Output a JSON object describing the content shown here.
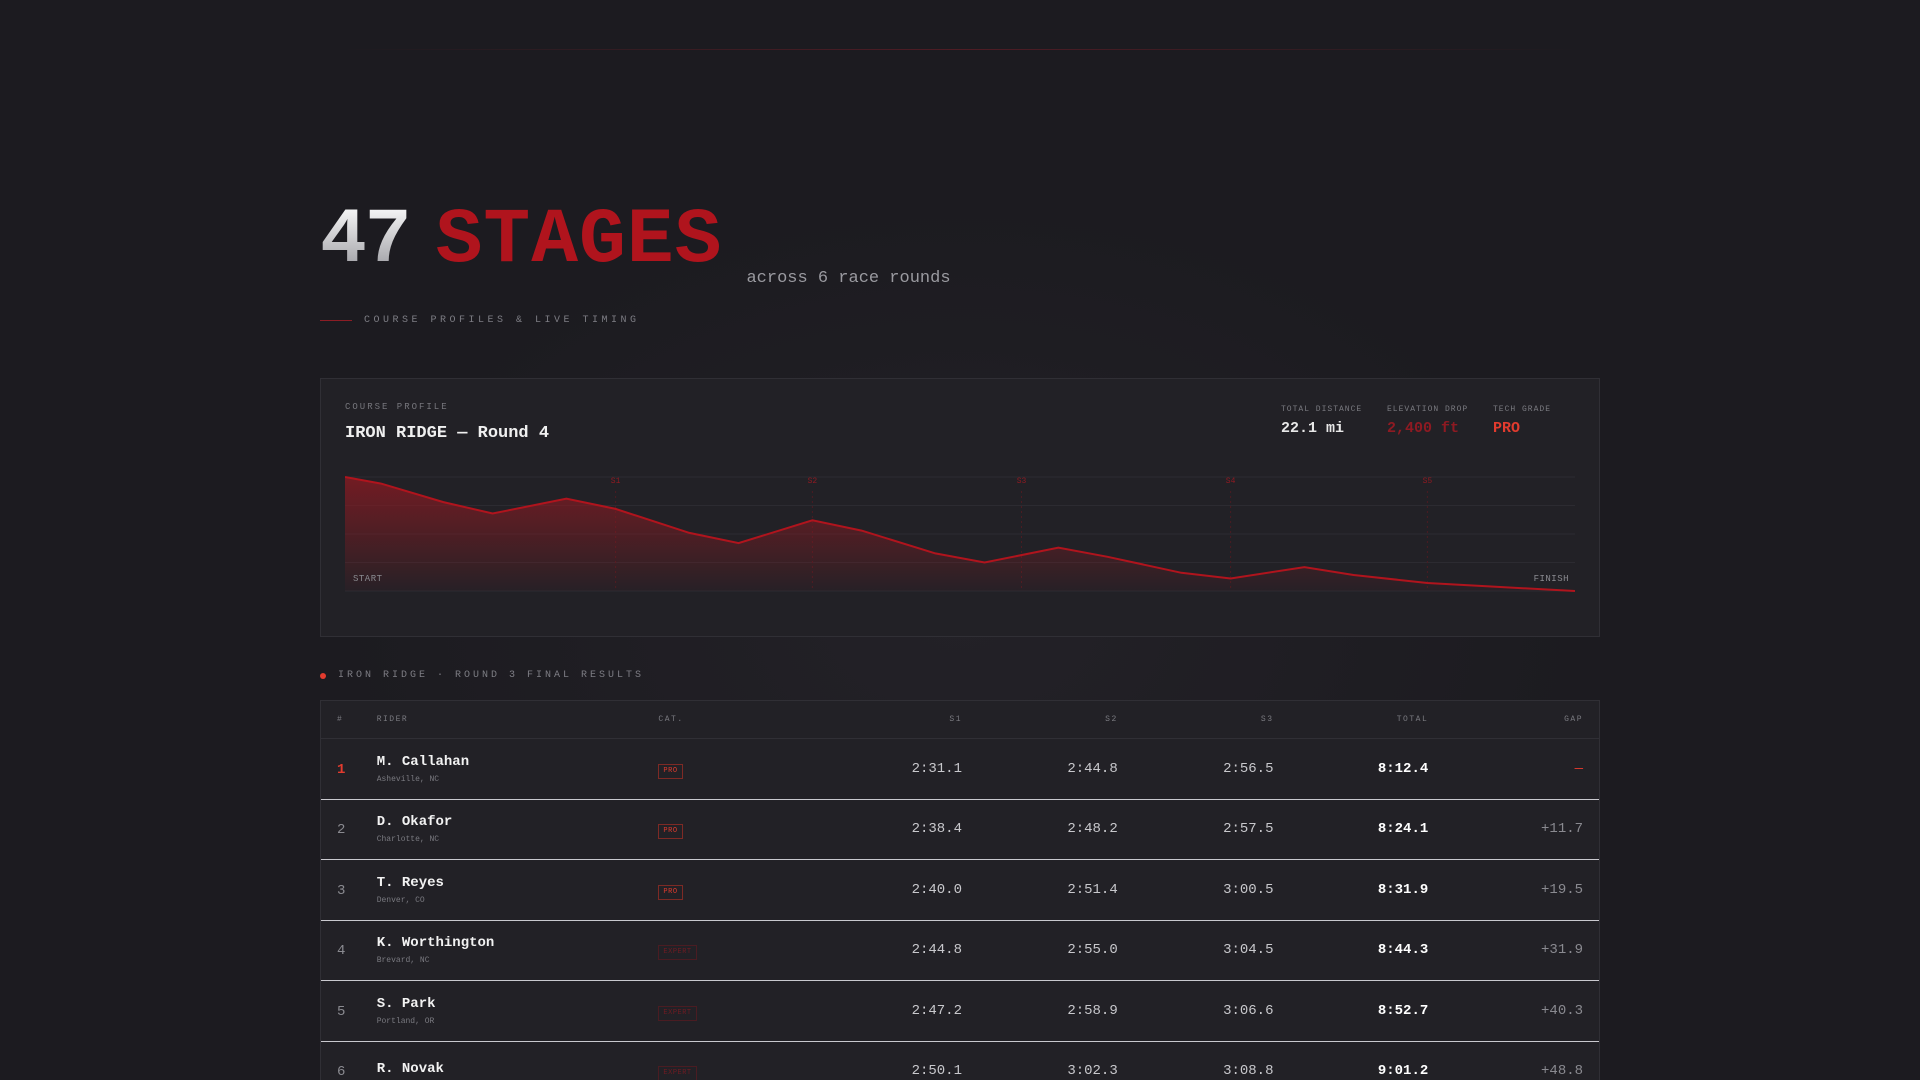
{
  "hero": {
    "count": "47",
    "word": "STAGES",
    "subtitle": "across 6 race rounds",
    "kicker": "COURSE PROFILES & LIVE TIMING"
  },
  "course": {
    "label": "COURSE PROFILE",
    "title": "IRON RIDGE — Round 4",
    "stats": [
      {
        "label": "TOTAL DISTANCE",
        "value": "22.1 mi"
      },
      {
        "label": "ELEVATION DROP",
        "value": "2,400 ft"
      },
      {
        "label": "TECH GRADE",
        "value": "PRO"
      }
    ],
    "profile": {
      "start_label": "START",
      "finish_label": "FINISH",
      "sectors": [
        "S1",
        "S2",
        "S3",
        "S4",
        "S5"
      ],
      "sector_positions": [
        0.22,
        0.38,
        0.55,
        0.72,
        0.88
      ],
      "elevation": [
        [
          0.0,
          1.0
        ],
        [
          0.03,
          0.94
        ],
        [
          0.08,
          0.78
        ],
        [
          0.12,
          0.68
        ],
        [
          0.18,
          0.81
        ],
        [
          0.22,
          0.72
        ],
        [
          0.28,
          0.51
        ],
        [
          0.32,
          0.42
        ],
        [
          0.38,
          0.62
        ],
        [
          0.42,
          0.53
        ],
        [
          0.48,
          0.33
        ],
        [
          0.52,
          0.25
        ],
        [
          0.58,
          0.38
        ],
        [
          0.62,
          0.3
        ],
        [
          0.68,
          0.16
        ],
        [
          0.72,
          0.11
        ],
        [
          0.78,
          0.21
        ],
        [
          0.82,
          0.14
        ],
        [
          0.88,
          0.07
        ],
        [
          0.93,
          0.04
        ],
        [
          1.0,
          0.0
        ]
      ]
    }
  },
  "results": {
    "title": "IRON RIDGE · ROUND 3 FINAL RESULTS",
    "columns": [
      "#",
      "RIDER",
      "CAT.",
      "S1",
      "S2",
      "S3",
      "TOTAL",
      "GAP"
    ],
    "rows": [
      {
        "pos": "1",
        "name": "M. Callahan",
        "loc": "Asheville, NC",
        "cat": "PRO",
        "s1": "2:31.1",
        "s2": "2:44.8",
        "s3": "2:56.5",
        "total": "8:12.4",
        "gap": "—"
      },
      {
        "pos": "2",
        "name": "D. Okafor",
        "loc": "Charlotte, NC",
        "cat": "PRO",
        "s1": "2:38.4",
        "s2": "2:48.2",
        "s3": "2:57.5",
        "total": "8:24.1",
        "gap": "+11.7"
      },
      {
        "pos": "3",
        "name": "T. Reyes",
        "loc": "Denver, CO",
        "cat": "PRO",
        "s1": "2:40.0",
        "s2": "2:51.4",
        "s3": "3:00.5",
        "total": "8:31.9",
        "gap": "+19.5"
      },
      {
        "pos": "4",
        "name": "K. Worthington",
        "loc": "Brevard, NC",
        "cat": "EXPERT",
        "s1": "2:44.8",
        "s2": "2:55.0",
        "s3": "3:04.5",
        "total": "8:44.3",
        "gap": "+31.9"
      },
      {
        "pos": "5",
        "name": "S. Park",
        "loc": "Portland, OR",
        "cat": "EXPERT",
        "s1": "2:47.2",
        "s2": "2:58.9",
        "s3": "3:06.6",
        "total": "8:52.7",
        "gap": "+40.3"
      },
      {
        "pos": "6",
        "name": "R. Novak",
        "loc": "",
        "cat": "EXPERT",
        "s1": "2:50.1",
        "s2": "3:02.3",
        "s3": "3:08.8",
        "total": "9:01.2",
        "gap": "+48.8"
      }
    ]
  },
  "colors": {
    "accent": "#b0141d",
    "accent_bright": "#e23b2e",
    "background": "#1c1b20",
    "card": "#222126"
  }
}
